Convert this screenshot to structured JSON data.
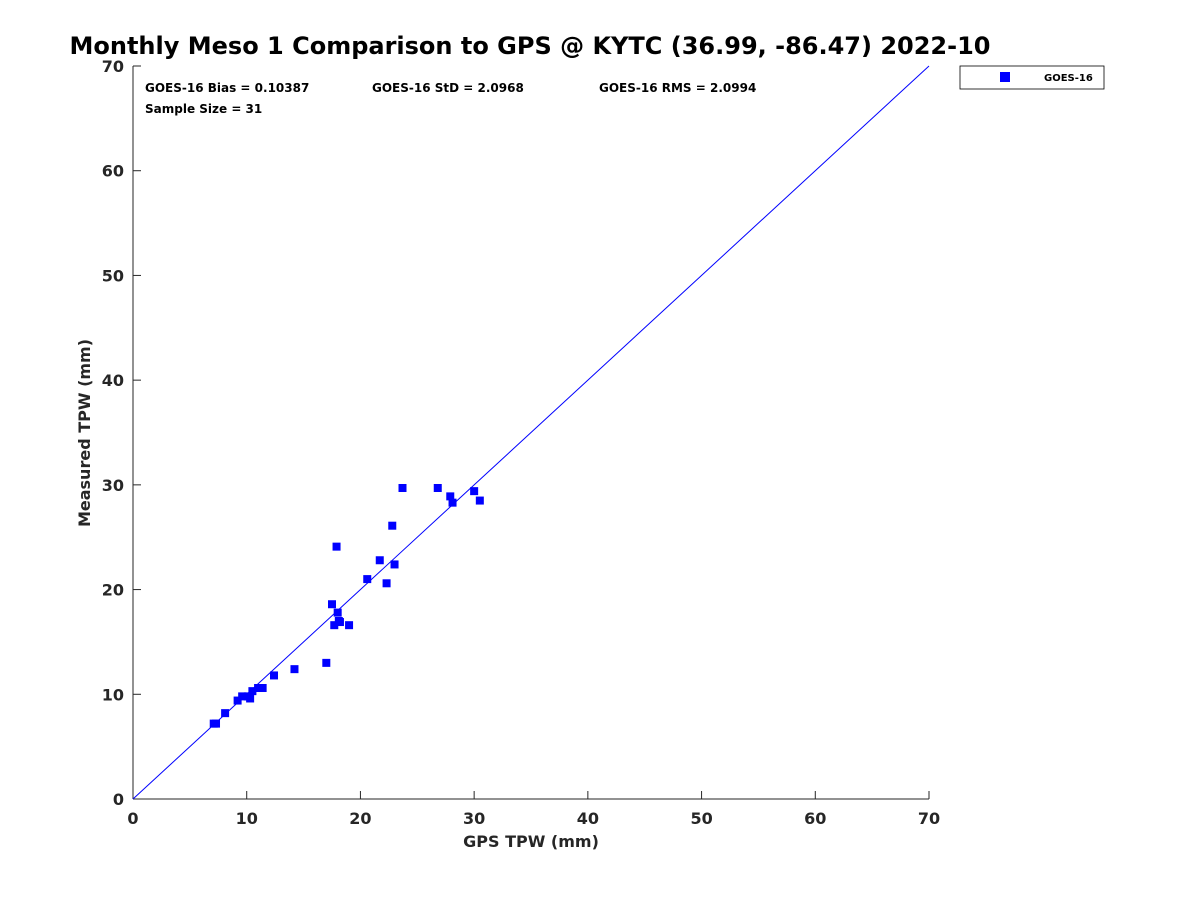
{
  "chart_data": {
    "type": "scatter",
    "title": "Monthly Meso 1 Comparison to GPS @ KYTC (36.99, -86.47) 2022-10",
    "xlabel": "GPS TPW (mm)",
    "ylabel": "Measured TPW (mm)",
    "xlim": [
      0,
      70
    ],
    "ylim": [
      0,
      70
    ],
    "xticks": [
      0,
      10,
      20,
      30,
      40,
      50,
      60,
      70
    ],
    "yticks": [
      0,
      10,
      20,
      30,
      40,
      50,
      60,
      70
    ],
    "grid": false,
    "legend_position": "outside-top-right",
    "stats": {
      "bias": "GOES-16 Bias = 0.10387",
      "std": "GOES-16 StD = 2.0968",
      "rms": "GOES-16 RMS = 2.0994",
      "sample": "Sample Size = 31"
    },
    "reference_line": {
      "x": [
        0,
        70
      ],
      "y": [
        0,
        70
      ],
      "color": "#0000ff"
    },
    "series": [
      {
        "name": "GOES-16",
        "color": "#0000ff",
        "marker": "square",
        "points": [
          [
            7.1,
            7.2
          ],
          [
            7.3,
            7.2
          ],
          [
            8.1,
            8.2
          ],
          [
            9.2,
            9.4
          ],
          [
            9.6,
            9.8
          ],
          [
            10.1,
            9.8
          ],
          [
            10.3,
            9.6
          ],
          [
            10.5,
            10.3
          ],
          [
            11.0,
            10.6
          ],
          [
            11.4,
            10.6
          ],
          [
            12.4,
            11.8
          ],
          [
            14.2,
            12.4
          ],
          [
            17.0,
            13.0
          ],
          [
            17.5,
            18.6
          ],
          [
            17.7,
            16.6
          ],
          [
            18.0,
            17.8
          ],
          [
            18.2,
            16.9
          ],
          [
            19.0,
            16.6
          ],
          [
            17.9,
            24.1
          ],
          [
            20.6,
            21.0
          ],
          [
            21.7,
            22.8
          ],
          [
            22.3,
            20.6
          ],
          [
            23.0,
            22.4
          ],
          [
            22.8,
            26.1
          ],
          [
            23.7,
            29.7
          ],
          [
            26.8,
            29.7
          ],
          [
            27.9,
            28.9
          ],
          [
            28.1,
            28.3
          ],
          [
            30.0,
            29.4
          ],
          [
            30.5,
            28.5
          ],
          [
            18.1,
            17.0
          ]
        ]
      }
    ]
  }
}
